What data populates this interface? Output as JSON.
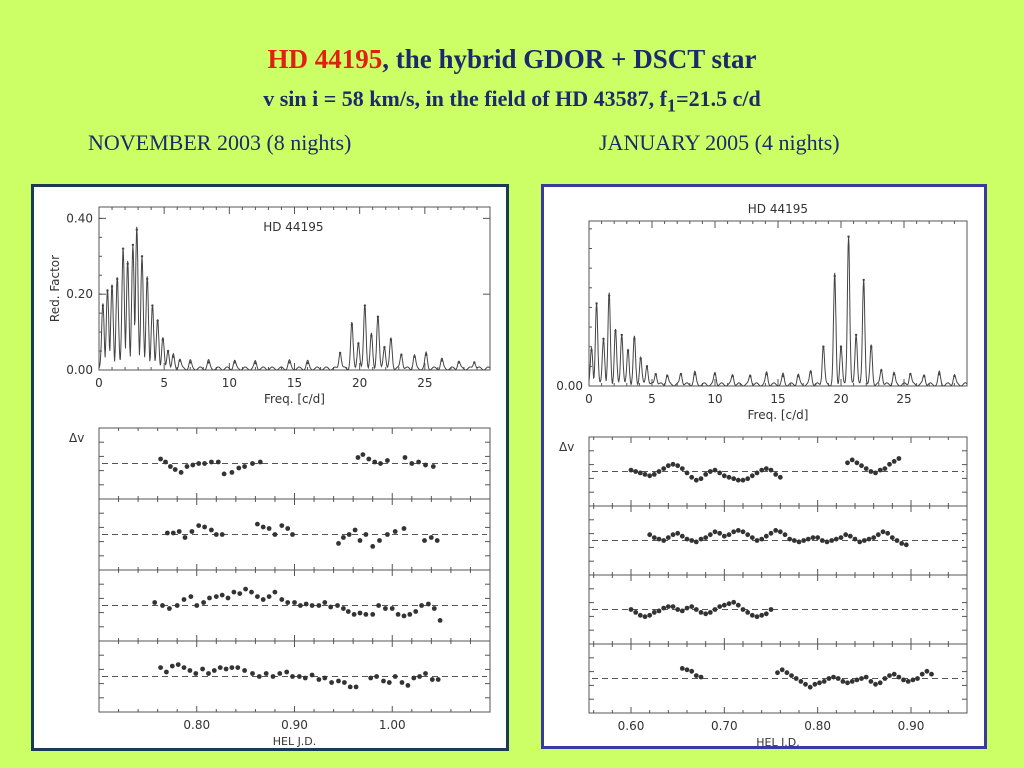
{
  "title": {
    "star": "HD 44195",
    "rest": ", the hybrid  GDOR + DSCT star",
    "line2_prefix": "v sin i = 58 km/s, in the field of HD 43587, f",
    "line2_sub": "1",
    "line2_suffix": "=21.5 c/d"
  },
  "left_caption": "NOVEMBER 2003 (8 nights)",
  "right_caption": "JANUARY 2005 (4 nights)",
  "colors": {
    "background": "#ccff66",
    "title": "#1a2a6c",
    "star_name": "#e02010"
  },
  "chart_data": [
    {
      "type": "line",
      "panel": "left-periodogram",
      "label": "HD 44195",
      "xlabel": "Freq. [c/d]",
      "ylabel": "Red. Factor",
      "xlim": [
        0,
        30
      ],
      "ylim": [
        0,
        0.43
      ],
      "xticks": [
        0,
        5,
        10,
        15,
        20,
        25
      ],
      "yticks": [
        0.0,
        0.2,
        0.4
      ],
      "ytick_labels": [
        "0.00",
        "0.20",
        "0.40"
      ],
      "peaks": [
        {
          "f": 0.3,
          "a": 0.17
        },
        {
          "f": 0.65,
          "a": 0.21
        },
        {
          "f": 1.0,
          "a": 0.22
        },
        {
          "f": 1.4,
          "a": 0.24
        },
        {
          "f": 1.85,
          "a": 0.32
        },
        {
          "f": 2.2,
          "a": 0.28
        },
        {
          "f": 2.6,
          "a": 0.33
        },
        {
          "f": 2.9,
          "a": 0.37
        },
        {
          "f": 3.3,
          "a": 0.3
        },
        {
          "f": 3.7,
          "a": 0.24
        },
        {
          "f": 4.1,
          "a": 0.17
        },
        {
          "f": 4.5,
          "a": 0.13
        },
        {
          "f": 4.9,
          "a": 0.08
        },
        {
          "f": 5.3,
          "a": 0.05
        },
        {
          "f": 5.7,
          "a": 0.035
        },
        {
          "f": 6.2,
          "a": 0.025
        },
        {
          "f": 7.0,
          "a": 0.02
        },
        {
          "f": 8.4,
          "a": 0.02
        },
        {
          "f": 10.4,
          "a": 0.02
        },
        {
          "f": 12.0,
          "a": 0.018
        },
        {
          "f": 14.6,
          "a": 0.02
        },
        {
          "f": 16.0,
          "a": 0.018
        },
        {
          "f": 18.5,
          "a": 0.045
        },
        {
          "f": 19.4,
          "a": 0.12
        },
        {
          "f": 19.9,
          "a": 0.07
        },
        {
          "f": 20.4,
          "a": 0.17
        },
        {
          "f": 20.9,
          "a": 0.09
        },
        {
          "f": 21.4,
          "a": 0.14
        },
        {
          "f": 21.9,
          "a": 0.06
        },
        {
          "f": 22.4,
          "a": 0.08
        },
        {
          "f": 23.2,
          "a": 0.04
        },
        {
          "f": 24.2,
          "a": 0.035
        },
        {
          "f": 25.1,
          "a": 0.04
        },
        {
          "f": 26.3,
          "a": 0.025
        },
        {
          "f": 27.6,
          "a": 0.02
        },
        {
          "f": 28.8,
          "a": 0.02
        }
      ]
    },
    {
      "type": "scatter",
      "panel": "left-light-curves",
      "ylabel": "Δv",
      "xlabel": "HEL J.D.",
      "xlim": [
        0.7,
        1.1
      ],
      "xticks": [
        0.8,
        0.9,
        1.0
      ],
      "xtick_labels": [
        "0.80",
        "0.90",
        "1.00"
      ],
      "ylim": [
        -1,
        1
      ],
      "series": [
        {
          "x": [
            0.763,
            0.768,
            0.773,
            0.778,
            0.784,
            0.79,
            0.796,
            0.802,
            0.808,
            0.815,
            0.822,
            0.828,
            0.836,
            0.843,
            0.849,
            0.857,
            0.865,
            0.965,
            0.97,
            0.976,
            0.982,
            0.988,
            0.995,
            1.013,
            1.02,
            1.027,
            1.034,
            1.042
          ],
          "y": [
            0.15,
            0.05,
            -0.1,
            -0.2,
            -0.3,
            -0.1,
            -0.05,
            0.0,
            0.0,
            0.05,
            0.05,
            -0.35,
            -0.3,
            -0.15,
            -0.1,
            0.0,
            0.05,
            0.2,
            0.3,
            0.15,
            0.05,
            0.0,
            0.1,
            0.2,
            0.0,
            0.05,
            -0.05,
            -0.1
          ]
        },
        {
          "x": [
            0.77,
            0.776,
            0.782,
            0.788,
            0.795,
            0.802,
            0.808,
            0.815,
            0.82,
            0.826,
            0.862,
            0.868,
            0.874,
            0.88,
            0.887,
            0.893,
            0.898,
            0.945,
            0.95,
            0.956,
            0.962,
            0.967,
            0.973,
            0.98,
            0.987,
            0.995,
            1.003,
            1.012,
            1.033,
            1.04,
            1.046
          ],
          "y": [
            0.05,
            0.05,
            0.1,
            -0.1,
            0.1,
            0.3,
            0.25,
            0.15,
            0.0,
            0.0,
            0.35,
            0.25,
            0.2,
            0.0,
            0.3,
            0.2,
            0.0,
            -0.3,
            -0.1,
            0.0,
            0.15,
            -0.2,
            0.0,
            -0.4,
            -0.2,
            0.0,
            0.1,
            0.2,
            -0.2,
            -0.1,
            -0.2
          ]
        },
        {
          "x": [
            0.757,
            0.765,
            0.772,
            0.78,
            0.787,
            0.794,
            0.8,
            0.807,
            0.813,
            0.82,
            0.826,
            0.832,
            0.838,
            0.844,
            0.85,
            0.856,
            0.862,
            0.868,
            0.874,
            0.88,
            0.887,
            0.893,
            0.9,
            0.906,
            0.912,
            0.918,
            0.925,
            0.931,
            0.937,
            0.944,
            0.95,
            0.955,
            0.961,
            0.967,
            0.973,
            0.98,
            0.986,
            0.993,
            1.0,
            1.006,
            1.012,
            1.018,
            1.024,
            1.03,
            1.037,
            1.043,
            1.049
          ],
          "y": [
            0.1,
            0.0,
            -0.1,
            0.0,
            0.2,
            0.3,
            0.0,
            0.1,
            0.25,
            0.3,
            0.35,
            0.25,
            0.45,
            0.4,
            0.55,
            0.45,
            0.3,
            0.2,
            0.3,
            0.45,
            0.2,
            0.1,
            0.1,
            0.0,
            0.05,
            0.0,
            0.0,
            0.1,
            -0.05,
            0.0,
            -0.1,
            -0.2,
            -0.3,
            -0.25,
            -0.3,
            -0.3,
            0.0,
            -0.1,
            -0.1,
            -0.3,
            -0.35,
            -0.3,
            -0.2,
            0.0,
            0.05,
            -0.1,
            -0.5
          ]
        },
        {
          "x": [
            0.763,
            0.769,
            0.775,
            0.781,
            0.787,
            0.793,
            0.799,
            0.806,
            0.812,
            0.818,
            0.824,
            0.83,
            0.836,
            0.842,
            0.849,
            0.857,
            0.864,
            0.871,
            0.878,
            0.885,
            0.892,
            0.898,
            0.905,
            0.911,
            0.918,
            0.925,
            0.931,
            0.938,
            0.945,
            0.951,
            0.957,
            0.963,
            0.978,
            0.984,
            0.991,
            0.997,
            1.003,
            1.01,
            1.016,
            1.022,
            1.028,
            1.034,
            1.041,
            1.047
          ],
          "y": [
            0.3,
            0.15,
            0.35,
            0.4,
            0.3,
            0.2,
            0.1,
            0.25,
            0.1,
            0.2,
            0.3,
            0.25,
            0.3,
            0.3,
            0.2,
            0.1,
            0.0,
            0.1,
            0.0,
            0.1,
            0.15,
            0.0,
            0.0,
            -0.05,
            0.05,
            -0.1,
            -0.05,
            -0.2,
            -0.15,
            -0.2,
            -0.35,
            -0.35,
            -0.05,
            0.0,
            -0.15,
            -0.2,
            0.0,
            -0.2,
            -0.3,
            -0.05,
            0.0,
            0.1,
            -0.1,
            -0.1
          ]
        }
      ]
    },
    {
      "type": "line",
      "panel": "right-periodogram",
      "label": "HD 44195",
      "xlabel": "Freq. [c/d]",
      "xlim": [
        0,
        30
      ],
      "ylim": [
        0,
        0.42
      ],
      "xticks": [
        0,
        5,
        10,
        15,
        20,
        25
      ],
      "yticks": [
        0.0
      ],
      "ytick_labels": [
        "0.00"
      ],
      "peaks": [
        {
          "f": 0.2,
          "a": 0.09
        },
        {
          "f": 0.6,
          "a": 0.21
        },
        {
          "f": 1.15,
          "a": 0.12
        },
        {
          "f": 1.6,
          "a": 0.23
        },
        {
          "f": 2.1,
          "a": 0.14
        },
        {
          "f": 2.6,
          "a": 0.13
        },
        {
          "f": 3.1,
          "a": 0.09
        },
        {
          "f": 3.6,
          "a": 0.12
        },
        {
          "f": 4.1,
          "a": 0.07
        },
        {
          "f": 4.6,
          "a": 0.05
        },
        {
          "f": 5.3,
          "a": 0.03
        },
        {
          "f": 6.2,
          "a": 0.025
        },
        {
          "f": 7.3,
          "a": 0.03
        },
        {
          "f": 8.4,
          "a": 0.03
        },
        {
          "f": 10.0,
          "a": 0.03
        },
        {
          "f": 11.4,
          "a": 0.025
        },
        {
          "f": 12.8,
          "a": 0.025
        },
        {
          "f": 14.1,
          "a": 0.03
        },
        {
          "f": 15.4,
          "a": 0.025
        },
        {
          "f": 16.6,
          "a": 0.025
        },
        {
          "f": 17.6,
          "a": 0.035
        },
        {
          "f": 18.6,
          "a": 0.1
        },
        {
          "f": 19.5,
          "a": 0.28
        },
        {
          "f": 20.0,
          "a": 0.1
        },
        {
          "f": 20.6,
          "a": 0.38
        },
        {
          "f": 21.2,
          "a": 0.13
        },
        {
          "f": 21.8,
          "a": 0.27
        },
        {
          "f": 22.4,
          "a": 0.1
        },
        {
          "f": 23.2,
          "a": 0.04
        },
        {
          "f": 24.2,
          "a": 0.03
        },
        {
          "f": 25.5,
          "a": 0.03
        },
        {
          "f": 26.6,
          "a": 0.025
        },
        {
          "f": 27.8,
          "a": 0.03
        },
        {
          "f": 29.0,
          "a": 0.025
        }
      ]
    },
    {
      "type": "scatter",
      "panel": "right-light-curves",
      "ylabel": "Δv",
      "xlabel": "HEL J.D.",
      "xlim": [
        0.555,
        0.96
      ],
      "xticks": [
        0.6,
        0.7,
        0.8,
        0.9
      ],
      "xtick_labels": [
        "0.60",
        "0.70",
        "0.80",
        "0.90"
      ],
      "ylim": [
        -1,
        1
      ],
      "series": [
        {
          "x": [
            0.6,
            0.605,
            0.61,
            0.615,
            0.62,
            0.625,
            0.63,
            0.635,
            0.64,
            0.645,
            0.65,
            0.655,
            0.66,
            0.665,
            0.67,
            0.675,
            0.68,
            0.685,
            0.69,
            0.695,
            0.7,
            0.705,
            0.71,
            0.715,
            0.72,
            0.725,
            0.73,
            0.735,
            0.74,
            0.745,
            0.75,
            0.755,
            0.76,
            0.832,
            0.837,
            0.842,
            0.847,
            0.852,
            0.857,
            0.862,
            0.867,
            0.872,
            0.877,
            0.882,
            0.887
          ],
          "y": [
            0.05,
            0.0,
            -0.05,
            -0.1,
            -0.15,
            -0.1,
            0.0,
            0.1,
            0.2,
            0.25,
            0.2,
            0.1,
            -0.05,
            -0.2,
            -0.3,
            -0.25,
            -0.1,
            0.0,
            0.05,
            -0.05,
            -0.15,
            -0.2,
            -0.25,
            -0.3,
            -0.3,
            -0.25,
            -0.15,
            -0.05,
            0.05,
            0.1,
            0.05,
            -0.1,
            -0.2,
            0.3,
            0.4,
            0.3,
            0.2,
            0.1,
            0.0,
            -0.05,
            0.05,
            0.1,
            0.25,
            0.35,
            0.45
          ]
        },
        {
          "x": [
            0.62,
            0.625,
            0.63,
            0.635,
            0.64,
            0.645,
            0.65,
            0.655,
            0.66,
            0.665,
            0.67,
            0.675,
            0.68,
            0.685,
            0.69,
            0.695,
            0.7,
            0.705,
            0.71,
            0.715,
            0.72,
            0.725,
            0.73,
            0.735,
            0.74,
            0.745,
            0.75,
            0.755,
            0.76,
            0.765,
            0.77,
            0.775,
            0.78,
            0.785,
            0.79,
            0.795,
            0.8,
            0.805,
            0.81,
            0.815,
            0.82,
            0.825,
            0.83,
            0.835,
            0.84,
            0.845,
            0.85,
            0.855,
            0.86,
            0.865,
            0.87,
            0.875,
            0.88,
            0.885,
            0.89,
            0.895
          ],
          "y": [
            0.2,
            0.1,
            0.05,
            0.0,
            0.1,
            0.2,
            0.25,
            0.15,
            0.05,
            0.0,
            -0.05,
            0.05,
            0.1,
            0.2,
            0.3,
            0.25,
            0.15,
            0.2,
            0.3,
            0.35,
            0.3,
            0.2,
            0.1,
            0.0,
            0.05,
            0.15,
            0.25,
            0.35,
            0.3,
            0.2,
            0.05,
            0.0,
            -0.05,
            0.0,
            0.05,
            0.1,
            0.1,
            0.0,
            -0.05,
            0.0,
            0.05,
            0.1,
            0.2,
            0.15,
            0.05,
            -0.05,
            0.0,
            0.05,
            0.1,
            0.2,
            0.3,
            0.25,
            0.1,
            0.0,
            -0.1,
            -0.15
          ]
        },
        {
          "x": [
            0.6,
            0.605,
            0.61,
            0.615,
            0.62,
            0.625,
            0.63,
            0.635,
            0.64,
            0.645,
            0.65,
            0.655,
            0.66,
            0.665,
            0.67,
            0.675,
            0.68,
            0.685,
            0.69,
            0.695,
            0.7,
            0.705,
            0.71,
            0.715,
            0.72,
            0.725,
            0.73,
            0.735,
            0.74,
            0.745,
            0.75
          ],
          "y": [
            0.0,
            -0.1,
            -0.2,
            -0.25,
            -0.2,
            -0.1,
            -0.05,
            0.05,
            0.1,
            0.1,
            0.0,
            -0.05,
            0.05,
            0.1,
            0.0,
            -0.1,
            -0.15,
            -0.1,
            0.0,
            0.1,
            0.15,
            0.2,
            0.25,
            0.15,
            0.0,
            -0.1,
            -0.2,
            -0.25,
            -0.2,
            -0.15,
            0.0
          ]
        },
        {
          "x": [
            0.655,
            0.66,
            0.665,
            0.67,
            0.675,
            0.757,
            0.762,
            0.767,
            0.772,
            0.777,
            0.782,
            0.787,
            0.792,
            0.797,
            0.802,
            0.807,
            0.812,
            0.817,
            0.822,
            0.827,
            0.832,
            0.837,
            0.842,
            0.847,
            0.852,
            0.857,
            0.862,
            0.867,
            0.872,
            0.877,
            0.882,
            0.887,
            0.892,
            0.897,
            0.902,
            0.907,
            0.912,
            0.917,
            0.922
          ],
          "y": [
            0.35,
            0.3,
            0.25,
            0.1,
            0.05,
            0.2,
            0.3,
            0.2,
            0.1,
            0.0,
            -0.1,
            -0.2,
            -0.3,
            -0.2,
            -0.15,
            -0.1,
            0.0,
            0.05,
            0.0,
            -0.1,
            -0.15,
            -0.1,
            -0.05,
            0.0,
            0.05,
            -0.1,
            -0.2,
            -0.15,
            0.0,
            0.1,
            0.15,
            0.05,
            -0.05,
            -0.1,
            -0.05,
            0.0,
            0.15,
            0.25,
            0.15
          ]
        }
      ]
    }
  ]
}
